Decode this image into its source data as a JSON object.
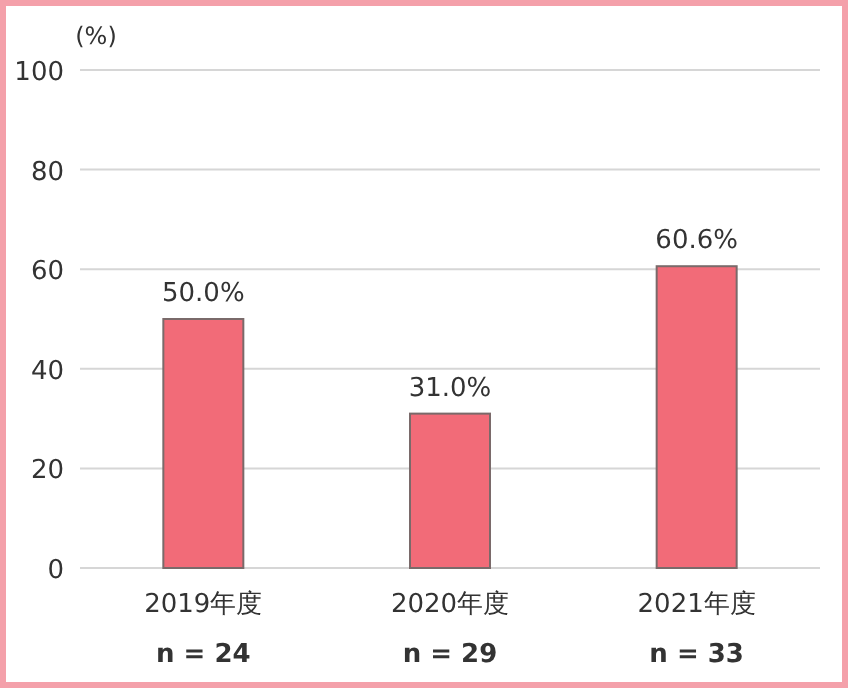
{
  "chart_data": {
    "type": "bar",
    "ylabel": "(%)",
    "categories": [
      "2019年度",
      "2020年度",
      "2021年度"
    ],
    "values": [
      50.0,
      31.0,
      60.6
    ],
    "value_labels": [
      "50.0%",
      "31.0%",
      "60.6%"
    ],
    "color": "#f26b78",
    "ylim": [
      0,
      100
    ],
    "yticks": [
      0,
      20,
      40,
      60,
      80,
      100
    ],
    "grid": "y",
    "annotations": [
      "n = 24",
      "n = 29",
      "n = 33"
    ]
  }
}
